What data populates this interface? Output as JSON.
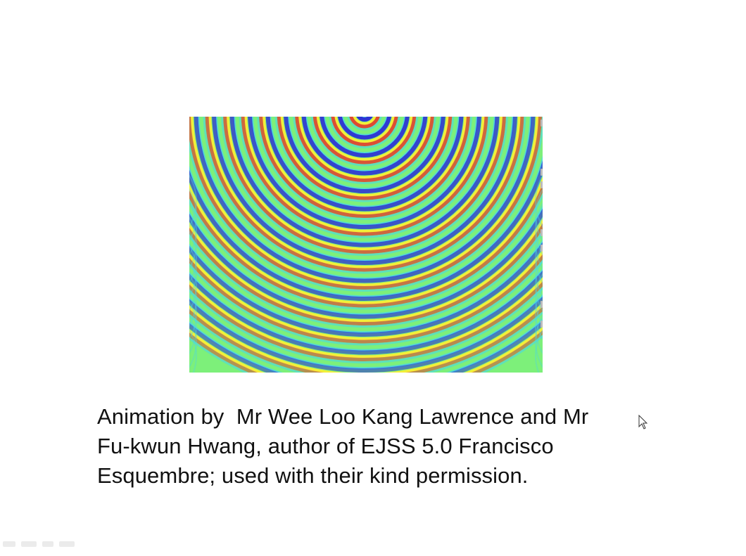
{
  "slide": {
    "caption": {
      "line1": "Animation by  Mr Wee Loo Kang Lawrence and Mr",
      "line2": "Fu-kwun Hwang, author of EJSS 5.0 Francisco",
      "line3": "Esquembre; used with their kind permission."
    }
  },
  "animation": {
    "description": "wave interference pattern",
    "colors": {
      "background": "#7df07a",
      "crest": "#e8372a",
      "trough": "#2a2ad8",
      "highlight": "#ffee33",
      "mid": "#4ad6e6"
    }
  },
  "icons": {
    "cursor": "mouse-pointer-icon"
  }
}
